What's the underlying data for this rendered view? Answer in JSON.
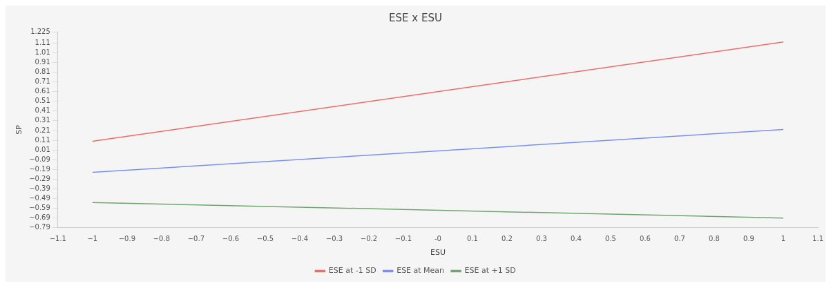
{
  "chart_data": {
    "type": "line",
    "title": "ESE x ESU",
    "xlabel": "ESU",
    "ylabel": "SP",
    "x": [
      -1,
      1
    ],
    "series": [
      {
        "name": "ESE at -1 SD",
        "color": "#f06a6a",
        "values": [
          0.1,
          1.12
        ]
      },
      {
        "name": "ESE at Mean",
        "color": "#7b8ff0",
        "values": [
          -0.22,
          0.22
        ]
      },
      {
        "name": "ESE at +1 SD",
        "color": "#6fa56f",
        "values": [
          -0.53,
          -0.69
        ]
      }
    ],
    "xlim": [
      -1.1,
      1.1
    ],
    "xticks": [
      -1.1,
      -1,
      -0.9,
      -0.8,
      -0.7,
      -0.6,
      -0.5,
      -0.4,
      -0.3,
      -0.2,
      -0.1,
      {
        "value": 0,
        "label": "-0"
      },
      0.1,
      0.2,
      0.3,
      0.4,
      0.5,
      0.6,
      0.7,
      0.8,
      0.9,
      1,
      1.1
    ],
    "ylim": [
      -0.79,
      1.225
    ],
    "yticks": [
      -0.79,
      -0.69,
      -0.59,
      -0.49,
      -0.39,
      -0.29,
      -0.19,
      -0.09,
      0.01,
      0.11,
      0.21,
      0.31,
      0.41,
      0.51,
      0.61,
      0.71,
      0.81,
      0.91,
      1.01,
      1.11,
      1.225
    ],
    "grid": false,
    "legend": "bottom",
    "marker": "none",
    "line_style": "solid"
  }
}
